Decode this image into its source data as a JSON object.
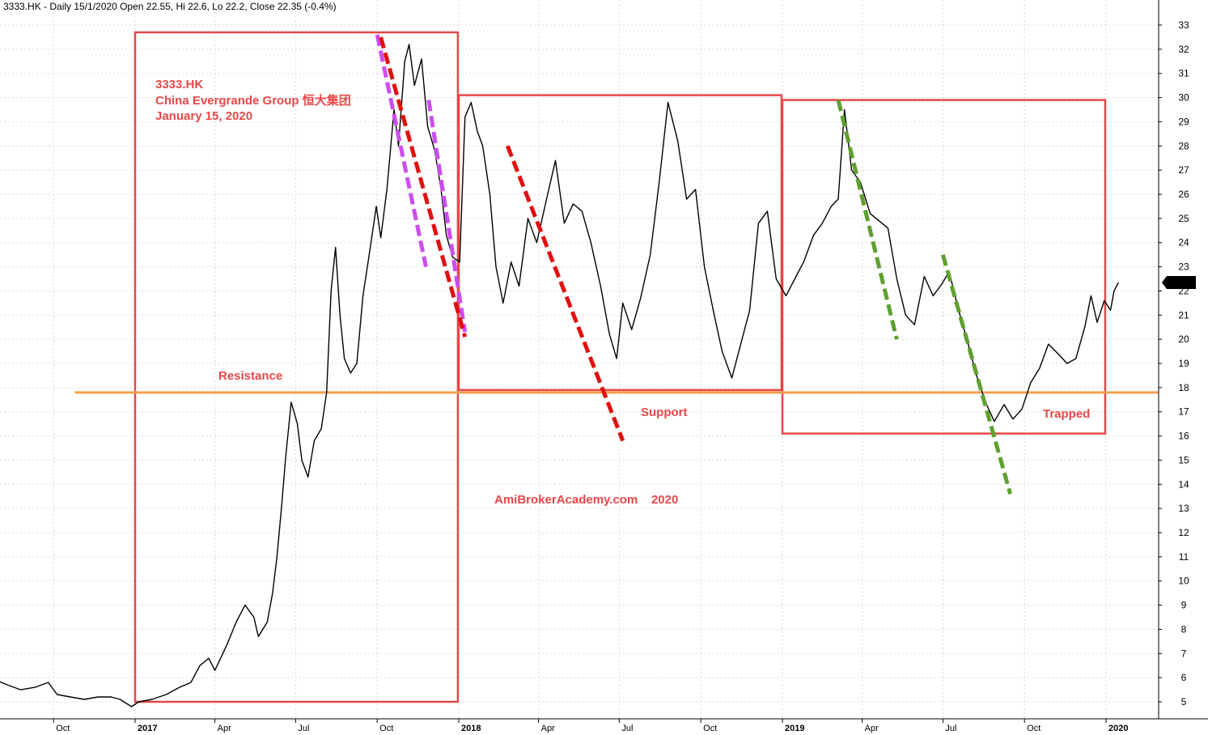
{
  "header": {
    "text": "3333.HK - Daily 15/1/2020 Open 22.55, Hi 22.6, Lo 22.2, Close 22.35 (-0.4%)"
  },
  "chart_data": {
    "type": "line",
    "title": "",
    "xlabel": "",
    "ylabel": "",
    "ylim": [
      4.5,
      33.5
    ],
    "x_ticks": [
      {
        "label": "Oct",
        "date": "2016-10-01",
        "year": false
      },
      {
        "label": "2017",
        "date": "2017-01-01",
        "year": true
      },
      {
        "label": "Apr",
        "date": "2017-04-01",
        "year": false
      },
      {
        "label": "Jul",
        "date": "2017-07-01",
        "year": false
      },
      {
        "label": "Oct",
        "date": "2017-10-01",
        "year": false
      },
      {
        "label": "2018",
        "date": "2018-01-01",
        "year": true
      },
      {
        "label": "Apr",
        "date": "2018-04-01",
        "year": false
      },
      {
        "label": "Jul",
        "date": "2018-07-01",
        "year": false
      },
      {
        "label": "Oct",
        "date": "2018-10-01",
        "year": false
      },
      {
        "label": "2019",
        "date": "2019-01-01",
        "year": true
      },
      {
        "label": "Apr",
        "date": "2019-04-01",
        "year": false
      },
      {
        "label": "Jul",
        "date": "2019-07-01",
        "year": false
      },
      {
        "label": "Oct",
        "date": "2019-10-01",
        "year": false
      },
      {
        "label": "2020",
        "date": "2020-01-01",
        "year": true
      }
    ],
    "y_ticks": [
      5,
      6,
      7,
      8,
      9,
      10,
      11,
      12,
      13,
      14,
      15,
      16,
      17,
      18,
      19,
      20,
      21,
      22,
      23,
      24,
      25,
      26,
      27,
      28,
      29,
      30,
      31,
      32,
      33
    ],
    "series": [
      {
        "name": "",
        "color": "#000000",
        "points": [
          [
            "2016-07-28",
            5.9
          ],
          [
            "2016-08-10",
            5.7
          ],
          [
            "2016-08-25",
            5.5
          ],
          [
            "2016-09-10",
            5.6
          ],
          [
            "2016-09-25",
            5.8
          ],
          [
            "2016-10-05",
            5.3
          ],
          [
            "2016-10-20",
            5.2
          ],
          [
            "2016-11-05",
            5.1
          ],
          [
            "2016-11-20",
            5.2
          ],
          [
            "2016-12-05",
            5.2
          ],
          [
            "2016-12-15",
            5.1
          ],
          [
            "2016-12-28",
            4.8
          ],
          [
            "2017-01-05",
            5.0
          ],
          [
            "2017-01-20",
            5.1
          ],
          [
            "2017-02-05",
            5.3
          ],
          [
            "2017-02-20",
            5.6
          ],
          [
            "2017-03-05",
            5.8
          ],
          [
            "2017-03-15",
            6.5
          ],
          [
            "2017-03-25",
            6.8
          ],
          [
            "2017-04-01",
            6.3
          ],
          [
            "2017-04-15",
            7.4
          ],
          [
            "2017-04-25",
            8.3
          ],
          [
            "2017-05-05",
            9.0
          ],
          [
            "2017-05-15",
            8.5
          ],
          [
            "2017-05-20",
            7.7
          ],
          [
            "2017-05-30",
            8.3
          ],
          [
            "2017-06-05",
            9.5
          ],
          [
            "2017-06-10",
            11.0
          ],
          [
            "2017-06-15",
            13.0
          ],
          [
            "2017-06-20",
            15.2
          ],
          [
            "2017-06-26",
            17.4
          ],
          [
            "2017-07-03",
            16.5
          ],
          [
            "2017-07-08",
            15.0
          ],
          [
            "2017-07-15",
            14.3
          ],
          [
            "2017-07-22",
            15.8
          ],
          [
            "2017-07-30",
            16.3
          ],
          [
            "2017-08-05",
            17.8
          ],
          [
            "2017-08-10",
            22.0
          ],
          [
            "2017-08-15",
            23.8
          ],
          [
            "2017-08-20",
            21.0
          ],
          [
            "2017-08-25",
            19.2
          ],
          [
            "2017-09-01",
            18.6
          ],
          [
            "2017-09-08",
            19.0
          ],
          [
            "2017-09-15",
            21.8
          ],
          [
            "2017-09-22",
            23.5
          ],
          [
            "2017-09-30",
            25.5
          ],
          [
            "2017-10-05",
            24.2
          ],
          [
            "2017-10-12",
            26.2
          ],
          [
            "2017-10-20",
            29.5
          ],
          [
            "2017-10-25",
            28.0
          ],
          [
            "2017-11-01",
            31.5
          ],
          [
            "2017-11-06",
            32.2
          ],
          [
            "2017-11-12",
            30.5
          ],
          [
            "2017-11-20",
            31.6
          ],
          [
            "2017-11-27",
            28.8
          ],
          [
            "2017-12-05",
            27.8
          ],
          [
            "2017-12-12",
            26.2
          ],
          [
            "2017-12-18",
            24.3
          ],
          [
            "2017-12-25",
            23.4
          ],
          [
            "2018-01-02",
            23.2
          ],
          [
            "2018-01-08",
            29.2
          ],
          [
            "2018-01-15",
            29.8
          ],
          [
            "2018-01-22",
            28.6
          ],
          [
            "2018-01-28",
            28.0
          ],
          [
            "2018-02-05",
            26.0
          ],
          [
            "2018-02-12",
            23.0
          ],
          [
            "2018-02-20",
            21.5
          ],
          [
            "2018-03-01",
            23.2
          ],
          [
            "2018-03-10",
            22.2
          ],
          [
            "2018-03-20",
            25.0
          ],
          [
            "2018-03-30",
            24.0
          ],
          [
            "2018-04-10",
            25.8
          ],
          [
            "2018-04-20",
            27.4
          ],
          [
            "2018-04-30",
            24.8
          ],
          [
            "2018-05-10",
            25.6
          ],
          [
            "2018-05-20",
            25.3
          ],
          [
            "2018-05-30",
            24.0
          ],
          [
            "2018-06-10",
            22.2
          ],
          [
            "2018-06-20",
            20.2
          ],
          [
            "2018-06-28",
            19.2
          ],
          [
            "2018-07-05",
            21.5
          ],
          [
            "2018-07-15",
            20.4
          ],
          [
            "2018-07-25",
            21.7
          ],
          [
            "2018-08-05",
            23.5
          ],
          [
            "2018-08-15",
            26.5
          ],
          [
            "2018-08-25",
            29.8
          ],
          [
            "2018-09-05",
            28.2
          ],
          [
            "2018-09-15",
            25.8
          ],
          [
            "2018-09-25",
            26.2
          ],
          [
            "2018-10-05",
            23.0
          ],
          [
            "2018-10-15",
            21.2
          ],
          [
            "2018-10-25",
            19.5
          ],
          [
            "2018-11-05",
            18.4
          ],
          [
            "2018-11-15",
            19.8
          ],
          [
            "2018-11-25",
            21.2
          ],
          [
            "2018-12-05",
            24.8
          ],
          [
            "2018-12-15",
            25.3
          ],
          [
            "2018-12-25",
            22.5
          ],
          [
            "2019-01-05",
            21.8
          ],
          [
            "2019-01-15",
            22.5
          ],
          [
            "2019-01-25",
            23.2
          ],
          [
            "2019-02-05",
            24.3
          ],
          [
            "2019-02-15",
            24.8
          ],
          [
            "2019-02-25",
            25.5
          ],
          [
            "2019-03-05",
            25.8
          ],
          [
            "2019-03-12",
            29.5
          ],
          [
            "2019-03-20",
            27.0
          ],
          [
            "2019-03-30",
            26.5
          ],
          [
            "2019-04-10",
            25.2
          ],
          [
            "2019-04-20",
            24.9
          ],
          [
            "2019-04-30",
            24.6
          ],
          [
            "2019-05-10",
            22.5
          ],
          [
            "2019-05-20",
            21.0
          ],
          [
            "2019-05-30",
            20.6
          ],
          [
            "2019-06-10",
            22.6
          ],
          [
            "2019-06-20",
            21.8
          ],
          [
            "2019-06-30",
            22.3
          ],
          [
            "2019-07-08",
            22.8
          ],
          [
            "2019-07-18",
            21.3
          ],
          [
            "2019-07-28",
            20.0
          ],
          [
            "2019-08-08",
            18.5
          ],
          [
            "2019-08-18",
            17.4
          ],
          [
            "2019-08-28",
            16.6
          ],
          [
            "2019-09-08",
            17.3
          ],
          [
            "2019-09-18",
            16.7
          ],
          [
            "2019-09-28",
            17.1
          ],
          [
            "2019-10-08",
            18.2
          ],
          [
            "2019-10-18",
            18.8
          ],
          [
            "2019-10-28",
            19.8
          ],
          [
            "2019-11-08",
            19.4
          ],
          [
            "2019-11-18",
            19.0
          ],
          [
            "2019-11-28",
            19.2
          ],
          [
            "2019-12-08",
            20.5
          ],
          [
            "2019-12-15",
            21.8
          ],
          [
            "2019-12-22",
            20.7
          ],
          [
            "2019-12-30",
            21.6
          ],
          [
            "2020-01-06",
            21.2
          ],
          [
            "2020-01-10",
            22.0
          ],
          [
            "2020-01-15",
            22.35
          ]
        ]
      }
    ],
    "last_price_label": "22.35",
    "last_price": 22.35,
    "boxes": [
      {
        "color": "#e64848",
        "x0": "2017-01-01",
        "x1": "2017-12-31",
        "y0": 5.0,
        "y1": 32.7
      },
      {
        "color": "#e64848",
        "x0": "2018-01-01",
        "x1": "2018-12-31",
        "y0": 17.9,
        "y1": 30.1
      },
      {
        "color": "#e64848",
        "x0": "2019-01-01",
        "x1": "2019-12-31",
        "y0": 16.1,
        "y1": 29.9
      }
    ],
    "hlines": [
      {
        "color": "#f0a050",
        "y": 17.8,
        "x0": "2016-10-25"
      }
    ],
    "dashed_lines": [
      {
        "color": "#cc4df0",
        "x0": "2017-10-01",
        "y0": 32.6,
        "x1": "2017-11-25",
        "y1": 23.0
      },
      {
        "color": "#cc4df0",
        "x0": "2017-11-28",
        "y0": 29.9,
        "x1": "2018-01-08",
        "y1": 20.3
      },
      {
        "color": "#e01010",
        "x0": "2017-10-05",
        "y0": 32.5,
        "x1": "2018-01-08",
        "y1": 20.1
      },
      {
        "color": "#e01010",
        "x0": "2018-02-25",
        "y0": 28.0,
        "x1": "2018-07-05",
        "y1": 15.8
      },
      {
        "color": "#5f9f2f",
        "x0": "2019-03-05",
        "y0": 29.9,
        "x1": "2019-05-10",
        "y1": 20.0
      },
      {
        "color": "#5f9f2f",
        "x0": "2019-07-01",
        "y0": 23.5,
        "x1": "2019-09-15",
        "y1": 13.6
      }
    ],
    "annotations": {
      "title_lines": [
        "3333.HK",
        "China Evergrande Group  恒大集团",
        "January 15, 2020"
      ],
      "resistance": "Resistance",
      "support": "Support",
      "trapped": "Trapped",
      "watermark": "AmiBrokerAcademy.com    2020",
      "color": "#e64848"
    },
    "grid": true,
    "legend": "none"
  }
}
